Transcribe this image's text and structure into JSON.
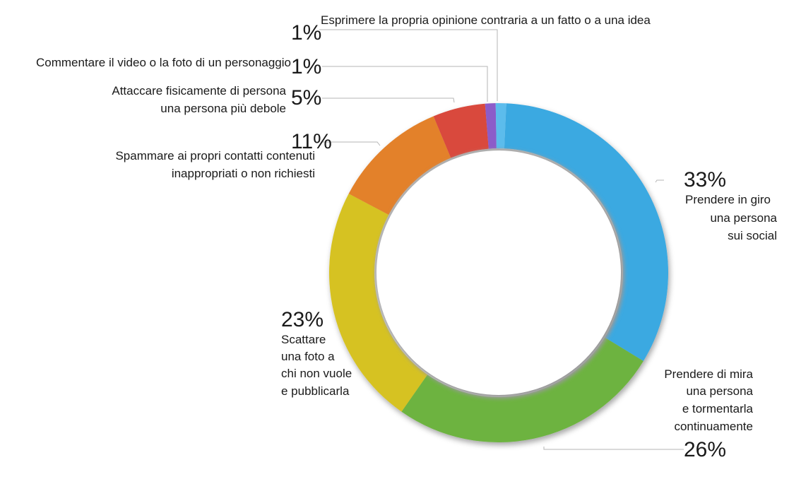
{
  "chart_data": {
    "type": "pie",
    "variant": "donut",
    "grid": false,
    "slices": [
      {
        "label_lines": [
          "Prendere in giro",
          "una persona",
          "sui social"
        ],
        "pct_text": "33%",
        "value": 33,
        "color": "#3AA9E1"
      },
      {
        "label_lines": [
          "Prendere di mira",
          "una persona",
          "e tormentarla",
          "continuamente"
        ],
        "pct_text": "26%",
        "value": 26,
        "color": "#6DB33F"
      },
      {
        "label_lines": [
          "Scattare",
          "una foto a",
          "chi non vuole",
          "e pubblicarla"
        ],
        "pct_text": "23%",
        "value": 23,
        "color": "#D6C223"
      },
      {
        "label_lines": [
          "Spammare ai propri contatti contenuti",
          "inappropriati o non richiesti"
        ],
        "pct_text": "11%",
        "value": 11,
        "color": "#E3812B"
      },
      {
        "label_lines": [
          "Attaccare fisicamente di persona",
          "una persona più debole"
        ],
        "pct_text": "5%",
        "value": 5,
        "color": "#D9493C"
      },
      {
        "label_lines": [
          "Commentare il video o la foto di un personaggio"
        ],
        "pct_text": "1%",
        "value": 1,
        "color": "#8C5BC9"
      },
      {
        "label_lines": [
          "Esprimere la propria opinione contraria a un fatto o a una idea"
        ],
        "pct_text": "1%",
        "value": 1,
        "color": "#5BBCEC"
      }
    ]
  }
}
